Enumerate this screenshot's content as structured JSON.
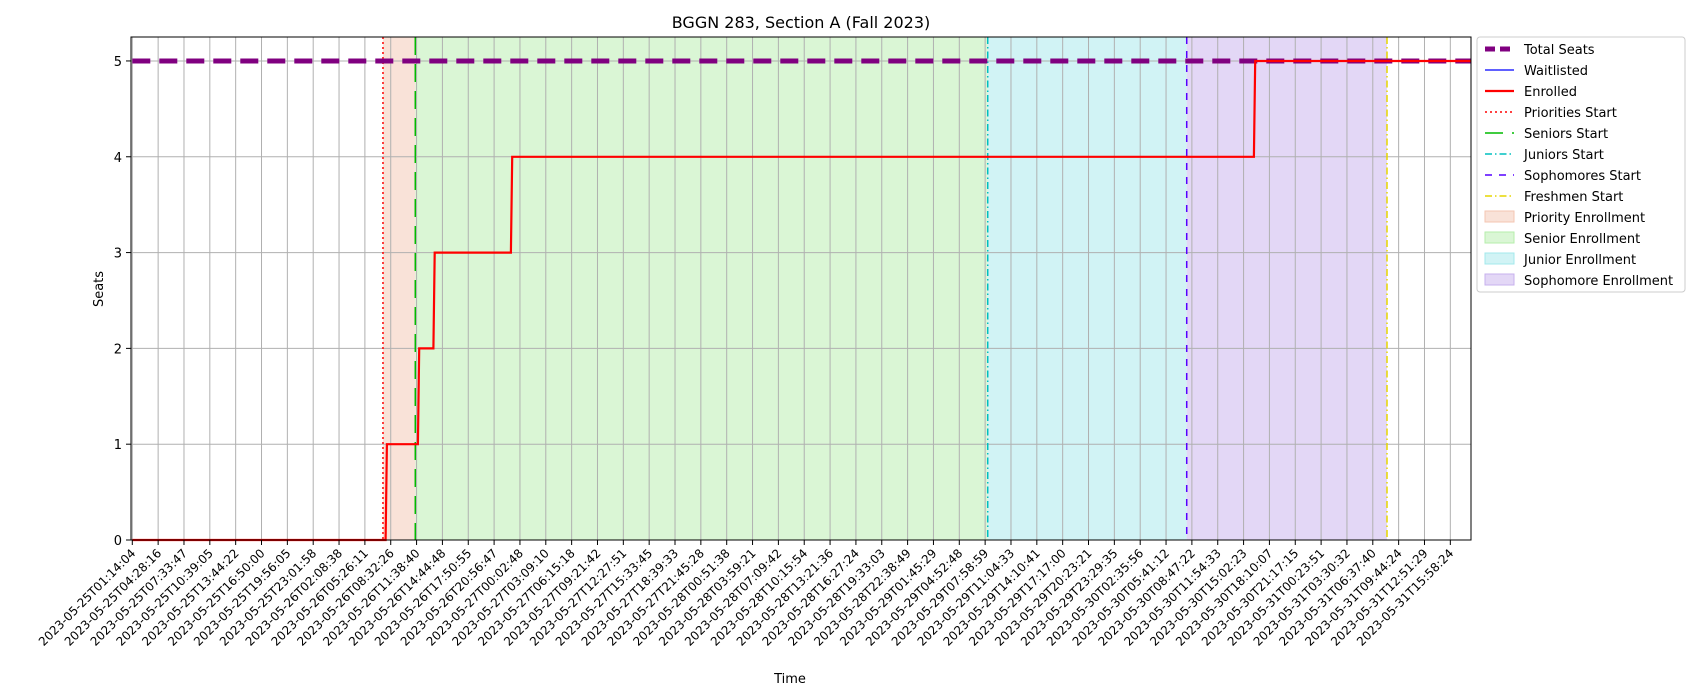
{
  "chart_data": {
    "type": "line",
    "title": "BGGN 283, Section A (Fall 2023)",
    "xlabel": "Time",
    "ylabel": "Seats",
    "ylim": [
      0,
      5.25
    ],
    "yticks": [
      0,
      1,
      2,
      3,
      4,
      5
    ],
    "grid": true,
    "legend_position": "outside-right",
    "x_ticks": [
      "2023-05-25T01:14:04",
      "2023-05-25T04:28:16",
      "2023-05-25T07:33:47",
      "2023-05-25T10:39:05",
      "2023-05-25T13:44:22",
      "2023-05-25T16:50:00",
      "2023-05-25T19:56:05",
      "2023-05-25T23:01:58",
      "2023-05-26T02:08:38",
      "2023-05-26T05:26:11",
      "2023-05-26T08:32:26",
      "2023-05-26T11:38:40",
      "2023-05-26T14:44:48",
      "2023-05-26T17:50:55",
      "2023-05-26T20:56:47",
      "2023-05-27T00:02:48",
      "2023-05-27T03:09:10",
      "2023-05-27T06:15:18",
      "2023-05-27T09:21:42",
      "2023-05-27T12:27:51",
      "2023-05-27T15:33:45",
      "2023-05-27T18:39:33",
      "2023-05-27T21:45:28",
      "2023-05-28T00:51:38",
      "2023-05-28T03:59:21",
      "2023-05-28T07:09:42",
      "2023-05-28T10:15:54",
      "2023-05-28T13:21:36",
      "2023-05-28T16:27:24",
      "2023-05-28T19:33:03",
      "2023-05-28T22:38:49",
      "2023-05-29T01:45:29",
      "2023-05-29T04:52:48",
      "2023-05-29T07:58:59",
      "2023-05-29T11:04:33",
      "2023-05-29T14:10:41",
      "2023-05-29T17:17:00",
      "2023-05-29T20:23:21",
      "2023-05-29T23:29:35",
      "2023-05-30T02:35:56",
      "2023-05-30T05:41:12",
      "2023-05-30T08:47:22",
      "2023-05-30T11:54:33",
      "2023-05-30T15:02:23",
      "2023-05-30T18:10:07",
      "2023-05-30T21:17:15",
      "2023-05-31T00:23:51",
      "2023-05-31T03:30:32",
      "2023-05-31T06:37:40",
      "2023-05-31T09:44:24",
      "2023-05-31T12:51:29",
      "2023-05-31T15:58:24"
    ],
    "series": [
      {
        "name": "Total Seats",
        "style": "dashed",
        "color": "#800080",
        "points": [
          [
            0,
            5
          ],
          [
            51.8,
            5
          ]
        ]
      },
      {
        "name": "Waitlisted",
        "style": "solid",
        "color": "#0000ff",
        "points": []
      },
      {
        "name": "Enrolled",
        "style": "solid",
        "color": "#ff0000",
        "points": [
          [
            0,
            0
          ],
          [
            9.8,
            0
          ],
          [
            9.85,
            1
          ],
          [
            11.05,
            1
          ],
          [
            11.1,
            2
          ],
          [
            11.65,
            2
          ],
          [
            11.7,
            3
          ],
          [
            14.65,
            3
          ],
          [
            14.7,
            4
          ],
          [
            43.4,
            4
          ],
          [
            43.45,
            5
          ],
          [
            51.8,
            5
          ]
        ]
      }
    ],
    "vlines": [
      {
        "name": "Priorities Start",
        "x": 9.7,
        "color": "#ff0000",
        "style": "dotted"
      },
      {
        "name": "Seniors Start",
        "x": 10.95,
        "color": "#00bb00",
        "style": "dashed"
      },
      {
        "name": "Juniors Start",
        "x": 33.1,
        "color": "#00bfbf",
        "style": "dashdot"
      },
      {
        "name": "Sophomores Start",
        "x": 40.8,
        "color": "#5500ff",
        "style": "loosedash"
      },
      {
        "name": "Freshmen Start",
        "x": 48.55,
        "color": "#e6d600",
        "style": "dashdot"
      }
    ],
    "spans": [
      {
        "name": "Priority Enrollment",
        "from": 9.7,
        "to": 10.95,
        "color": "#f4c6b2"
      },
      {
        "name": "Senior Enrollment",
        "from": 10.95,
        "to": 33.1,
        "color": "#b6eeab"
      },
      {
        "name": "Junior Enrollment",
        "from": 33.1,
        "to": 40.8,
        "color": "#a3e8ec"
      },
      {
        "name": "Sophomore Enrollment",
        "from": 40.8,
        "to": 48.55,
        "color": "#c7b0ee"
      }
    ]
  }
}
